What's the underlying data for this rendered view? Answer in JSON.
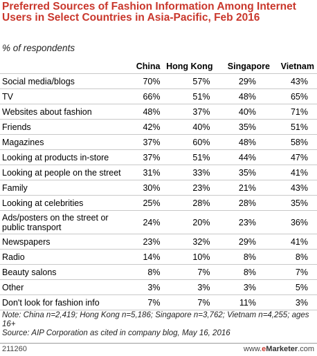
{
  "chart_data": {
    "type": "table",
    "title": "Preferred Sources of Fashion Information Among Internet Users in Select Countries in Asia-Pacific, Feb 2016",
    "subtitle": "% of respondents",
    "columns": [
      "China",
      "Hong Kong",
      "Singapore",
      "Vietnam"
    ],
    "rows": [
      {
        "label": "Social media/blogs",
        "values": [
          "70%",
          "57%",
          "29%",
          "43%"
        ]
      },
      {
        "label": "TV",
        "values": [
          "66%",
          "51%",
          "48%",
          "65%"
        ]
      },
      {
        "label": "Websites about fashion",
        "values": [
          "48%",
          "37%",
          "40%",
          "71%"
        ]
      },
      {
        "label": "Friends",
        "values": [
          "42%",
          "40%",
          "35%",
          "51%"
        ]
      },
      {
        "label": "Magazines",
        "values": [
          "37%",
          "60%",
          "48%",
          "58%"
        ]
      },
      {
        "label": "Looking at products in-store",
        "values": [
          "37%",
          "51%",
          "44%",
          "47%"
        ]
      },
      {
        "label": "Looking at people on the street",
        "values": [
          "31%",
          "33%",
          "35%",
          "41%"
        ]
      },
      {
        "label": "Family",
        "values": [
          "30%",
          "23%",
          "21%",
          "43%"
        ]
      },
      {
        "label": "Looking at celebrities",
        "values": [
          "25%",
          "28%",
          "28%",
          "35%"
        ]
      },
      {
        "label": "Ads/posters on the street or public transport",
        "values": [
          "24%",
          "20%",
          "23%",
          "36%"
        ]
      },
      {
        "label": "Newspapers",
        "values": [
          "23%",
          "32%",
          "29%",
          "41%"
        ]
      },
      {
        "label": "Radio",
        "values": [
          "14%",
          "10%",
          "8%",
          "8%"
        ]
      },
      {
        "label": "Beauty salons",
        "values": [
          "8%",
          "7%",
          "8%",
          "7%"
        ]
      },
      {
        "label": "Other",
        "values": [
          "3%",
          "3%",
          "3%",
          "5%"
        ]
      },
      {
        "label": "Don't look for fashion info",
        "values": [
          "7%",
          "7%",
          "11%",
          "3%"
        ]
      }
    ],
    "note": "Note: China n=2,419; Hong Kong n=5,186; Singapore n=3,762; Vietnam n=4,255; ages 16+",
    "source": "Source: AIP Corporation as cited in company blog, May 16, 2016"
  },
  "footer": {
    "chart_id": "211260",
    "brand_prefix": "www.",
    "brand_e": "e",
    "brand_name": "Marketer",
    "brand_suffix": ".com"
  },
  "colors": {
    "title": "#c9372c",
    "rule": "#c8c8c8"
  }
}
